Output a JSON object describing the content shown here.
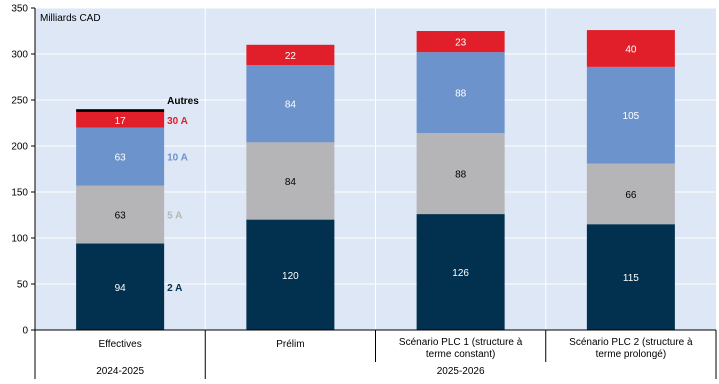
{
  "chart_data": {
    "type": "bar",
    "stacked": true,
    "unit_label": "Milliards CAD",
    "ylim": [
      0,
      350
    ],
    "yticks": [
      0,
      50,
      100,
      150,
      200,
      250,
      300,
      350
    ],
    "categories": [
      "Effectives",
      "Prélim",
      "Scénario PLC 1 (structure à terme constant)",
      "Scénario PLC 2 (structure à terme prolongé)"
    ],
    "category_lines": [
      [
        "Effectives"
      ],
      [
        "Prélim"
      ],
      [
        "Scénario PLC 1 (structure à",
        "terme constant)"
      ],
      [
        "Scénario PLC 2 (structure à",
        "terme prolongé)"
      ]
    ],
    "groups": [
      {
        "label": "2024-2025",
        "categories": [
          0
        ]
      },
      {
        "label": "2025-2026",
        "categories": [
          1,
          2,
          3
        ]
      }
    ],
    "series": [
      {
        "name": "2 A",
        "color": "#02304f",
        "label_color": "#02304f",
        "values": [
          94,
          120,
          126,
          115
        ]
      },
      {
        "name": "5 A",
        "color": "#b5b4b6",
        "label_color": "#b5b4b6",
        "values": [
          63,
          84,
          88,
          66
        ]
      },
      {
        "name": "10 A",
        "color": "#6c93cc",
        "label_color": "#6c93cc",
        "values": [
          63,
          84,
          88,
          105
        ]
      },
      {
        "name": "30 A",
        "color": "#e11f2a",
        "label_color": "#e11f2a",
        "values": [
          17,
          22,
          23,
          40
        ]
      },
      {
        "name": "Autres",
        "color": "#000000",
        "label_color": "#000000",
        "values": [
          3,
          0,
          0,
          0
        ]
      }
    ],
    "data_labels": [
      [
        "94",
        "120",
        "126",
        "115"
      ],
      [
        "63",
        "84",
        "88",
        "66"
      ],
      [
        "63",
        "84",
        "88",
        "105"
      ],
      [
        "17",
        "22",
        "23",
        "40"
      ],
      [
        "",
        "",
        "",
        ""
      ]
    ],
    "grid": true,
    "background": "#dde7f5",
    "gridline_color": "#ffffff"
  }
}
